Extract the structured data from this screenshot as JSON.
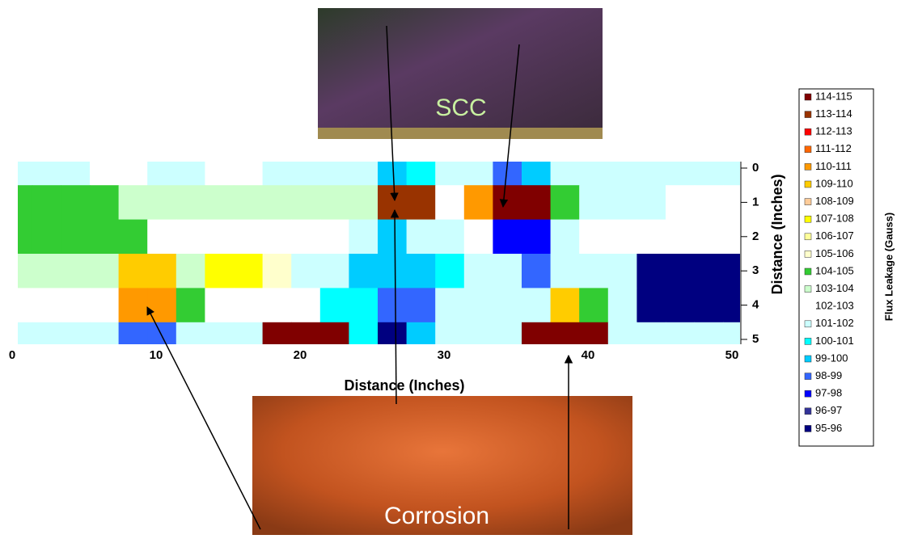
{
  "chart_data": {
    "type": "heatmap",
    "x_label": "Distance (Inches)",
    "y_label": "Distance (Inches)",
    "colorbar_label": "Flux Leakage (Gauss)",
    "photo_labels": [
      "SCC",
      "Corrosion"
    ],
    "x": [
      0,
      2,
      4,
      6,
      8,
      10,
      12,
      14,
      16,
      18,
      20,
      22,
      24,
      26,
      28,
      30,
      32,
      34,
      36,
      38,
      40,
      42,
      44,
      46,
      48,
      50
    ],
    "y": [
      0,
      1,
      2,
      3,
      4,
      5
    ],
    "z": [
      [
        101.5,
        101.5,
        101.5,
        102.5,
        102.5,
        101.5,
        101.5,
        102.5,
        102.5,
        101.5,
        101.5,
        101.5,
        101.5,
        99.5,
        100.5,
        101.5,
        101.5,
        98.5,
        99.5,
        101.5,
        101.5,
        101.5,
        101.5,
        101.5,
        101.5,
        101.5
      ],
      [
        104.5,
        104.5,
        104.5,
        104.5,
        103.5,
        103.5,
        103.5,
        103.5,
        103.5,
        103.5,
        103.5,
        103.5,
        103.5,
        113.5,
        113.5,
        102.5,
        110.5,
        114.5,
        114.5,
        104.5,
        101.5,
        101.5,
        101.5,
        102.5,
        102.5,
        102.5
      ],
      [
        104.5,
        104.5,
        104.5,
        104.5,
        104.5,
        102.5,
        102.5,
        102.5,
        102.5,
        102.5,
        102.5,
        102.5,
        101.5,
        99.5,
        101.5,
        101.5,
        102.5,
        97.5,
        97.5,
        101.5,
        102.5,
        102.5,
        102.5,
        102.5,
        102.5,
        102.5
      ],
      [
        103.5,
        103.5,
        103.5,
        103.5,
        109.5,
        109.5,
        103.5,
        107.5,
        107.5,
        105.5,
        101.5,
        101.5,
        99.5,
        99.5,
        99.5,
        100.5,
        101.5,
        101.5,
        98.5,
        101.5,
        101.5,
        101.5,
        95.5,
        95.5,
        95.5,
        95.5
      ],
      [
        102.5,
        102.5,
        102.5,
        102.5,
        110.5,
        110.5,
        104.5,
        102.5,
        102.5,
        102.5,
        102.5,
        100.5,
        100.5,
        98.5,
        98.5,
        101.5,
        101.5,
        101.5,
        101.5,
        109.5,
        104.5,
        101.5,
        95.5,
        95.5,
        95.5,
        95.5
      ],
      [
        101.5,
        101.5,
        101.5,
        101.5,
        98.5,
        98.5,
        101.5,
        101.5,
        101.5,
        114.5,
        114.5,
        114.5,
        100.5,
        95.5,
        99.5,
        101.5,
        101.5,
        101.5,
        114.5,
        114.5,
        114.5,
        101.5,
        101.5,
        101.5,
        101.5,
        101.5
      ]
    ],
    "xlim": [
      0,
      50
    ],
    "xticks": [
      0,
      10,
      20,
      30,
      40,
      50
    ],
    "ylim": [
      0,
      5
    ],
    "yticks": [
      0,
      1,
      2,
      3,
      4,
      5
    ],
    "y_reversed": true,
    "color_scale": [
      {
        "min": 114,
        "max": 115,
        "label": "114-115",
        "color": "#800000"
      },
      {
        "min": 113,
        "max": 114,
        "label": "113-114",
        "color": "#993300"
      },
      {
        "min": 112,
        "max": 113,
        "label": "112-113",
        "color": "#ff0000"
      },
      {
        "min": 111,
        "max": 112,
        "label": "111-112",
        "color": "#ff6600"
      },
      {
        "min": 110,
        "max": 111,
        "label": "110-111",
        "color": "#ff9900"
      },
      {
        "min": 109,
        "max": 110,
        "label": "109-110",
        "color": "#ffcc00"
      },
      {
        "min": 108,
        "max": 109,
        "label": "108-109",
        "color": "#ffcc99"
      },
      {
        "min": 107,
        "max": 108,
        "label": "107-108",
        "color": "#ffff00"
      },
      {
        "min": 106,
        "max": 107,
        "label": "106-107",
        "color": "#ffff99"
      },
      {
        "min": 105,
        "max": 106,
        "label": "105-106",
        "color": "#ffffcc"
      },
      {
        "min": 104,
        "max": 105,
        "label": "104-105",
        "color": "#33cc33"
      },
      {
        "min": 103,
        "max": 104,
        "label": "103-104",
        "color": "#ccffcc"
      },
      {
        "min": 102,
        "max": 103,
        "label": "102-103",
        "color": "#ffffff"
      },
      {
        "min": 101,
        "max": 102,
        "label": "101-102",
        "color": "#ccffff"
      },
      {
        "min": 100,
        "max": 101,
        "label": "100-101",
        "color": "#00ffff"
      },
      {
        "min": 99,
        "max": 100,
        "label": "99-100",
        "color": "#00ccff"
      },
      {
        "min": 98,
        "max": 99,
        "label": "98-99",
        "color": "#3366ff"
      },
      {
        "min": 97,
        "max": 98,
        "label": "97-98",
        "color": "#0000ff"
      },
      {
        "min": 96,
        "max": 97,
        "label": "96-97",
        "color": "#333399"
      },
      {
        "min": 95,
        "max": 96,
        "label": "95-96",
        "color": "#000080"
      }
    ]
  }
}
